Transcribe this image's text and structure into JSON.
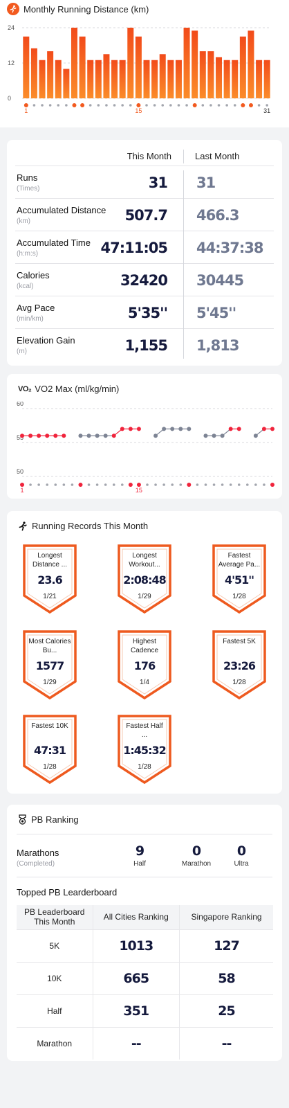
{
  "distance_chart": {
    "title": "Monthly Running Distance (km)",
    "color": "#f25a1f",
    "chart_data": {
      "type": "bar",
      "title": "Monthly Running Distance (km)",
      "x": [
        1,
        2,
        3,
        4,
        5,
        6,
        7,
        8,
        9,
        10,
        11,
        12,
        13,
        14,
        15,
        16,
        17,
        18,
        19,
        20,
        21,
        22,
        23,
        24,
        25,
        26,
        27,
        28,
        29,
        30,
        31
      ],
      "values": [
        21,
        17,
        13,
        16,
        13,
        10,
        24,
        21,
        13,
        13,
        15,
        13,
        13,
        24,
        21,
        13,
        13,
        15,
        13,
        13,
        24,
        23,
        16,
        16,
        14,
        13,
        13,
        21,
        23,
        13,
        13
      ],
      "ylim": [
        0,
        24
      ],
      "yticks": [
        "24",
        "12",
        "0"
      ],
      "xtick_labels": [
        "1",
        "15",
        "31"
      ],
      "dot_colors_highlight_days": [
        1,
        7,
        8,
        15,
        22,
        28,
        29
      ]
    }
  },
  "stats": {
    "col_this": "This Month",
    "col_last": "Last Month",
    "rows": [
      {
        "label": "Runs",
        "unit": "(Times)",
        "this": "31",
        "last": "31"
      },
      {
        "label": "Accumulated Distance",
        "unit": "(km)",
        "this": "507.7",
        "last": "466.3"
      },
      {
        "label": "Accumulated Time",
        "unit": "(h:m:s)",
        "this": "47:11:05",
        "last": "44:37:38"
      },
      {
        "label": "Calories",
        "unit": "(kcal)",
        "this": "32420",
        "last": "30445"
      },
      {
        "label": "Avg Pace",
        "unit": "(min/km)",
        "this": "5'35''",
        "last": "5'45''"
      },
      {
        "label": "Elevation Gain",
        "unit": "(m)",
        "this": "1,155",
        "last": "1,813"
      }
    ]
  },
  "vo2": {
    "icon_text": "VO₂",
    "title": "VO2 Max (ml/kg/min)",
    "red": "#f0243c",
    "gray": "#7d8494",
    "chart_data": {
      "type": "line",
      "x": [
        1,
        2,
        3,
        4,
        5,
        6,
        7,
        8,
        9,
        10,
        11,
        12,
        13,
        14,
        15,
        16,
        17,
        18,
        19,
        20,
        21,
        22,
        23,
        24,
        25,
        26,
        27,
        28,
        29,
        30,
        31
      ],
      "values": [
        56,
        56,
        56,
        56,
        56,
        56,
        null,
        56,
        56,
        56,
        56,
        56,
        57,
        57,
        57,
        null,
        56,
        57,
        57,
        57,
        57,
        null,
        56,
        56,
        56,
        57,
        57,
        null,
        56,
        57,
        57
      ],
      "colors": [
        "r",
        "r",
        "r",
        "r",
        "r",
        "r",
        "",
        "g",
        "g",
        "g",
        "g",
        "r",
        "r",
        "r",
        "r",
        "",
        "g",
        "g",
        "g",
        "g",
        "g",
        "",
        "g",
        "g",
        "g",
        "r",
        "r",
        "",
        "g",
        "r",
        "r"
      ],
      "ylim": [
        50,
        60
      ],
      "yticks": [
        "60",
        "55",
        "50"
      ],
      "xtick_labels": [
        "1",
        "15"
      ],
      "dot_colors_highlight_days": [
        1,
        8,
        14,
        15,
        21,
        31
      ]
    }
  },
  "records": {
    "title": "Running Records This Month",
    "items": [
      {
        "title": "Longest Distance ...",
        "value": "23.6",
        "date": "1/21"
      },
      {
        "title": "Longest Workout...",
        "value": "2:08:48",
        "date": "1/29"
      },
      {
        "title": "Fastest Average Pa...",
        "value": "4'51''",
        "date": "1/28"
      },
      {
        "title": "Most Calories Bu...",
        "value": "1577",
        "date": "1/29"
      },
      {
        "title": "Highest Cadence",
        "value": "176",
        "date": "1/4"
      },
      {
        "title": "Fastest 5K",
        "value": "23:26",
        "date": "1/28"
      },
      {
        "title": "Fastest 10K",
        "value": "47:31",
        "date": "1/28"
      },
      {
        "title": "Fastest Half ...",
        "value": "1:45:32",
        "date": "1/28"
      }
    ]
  },
  "pb": {
    "title": "PB Ranking",
    "marathons_label": "Marathons",
    "marathons_sub": "(Completed)",
    "counts": [
      {
        "value": "9",
        "label": "Half"
      },
      {
        "value": "0",
        "label": "Marathon"
      },
      {
        "value": "0",
        "label": "Ultra"
      }
    ],
    "leaderboard_title": "Topped PB Learderboard",
    "table": {
      "headers": [
        "PB Leaderboard This Month",
        "All Cities Ranking",
        "Singapore Ranking"
      ],
      "rows": [
        [
          "5K",
          "1013",
          "127"
        ],
        [
          "10K",
          "665",
          "58"
        ],
        [
          "Half",
          "351",
          "25"
        ],
        [
          "Marathon",
          "--",
          "--"
        ]
      ]
    }
  }
}
